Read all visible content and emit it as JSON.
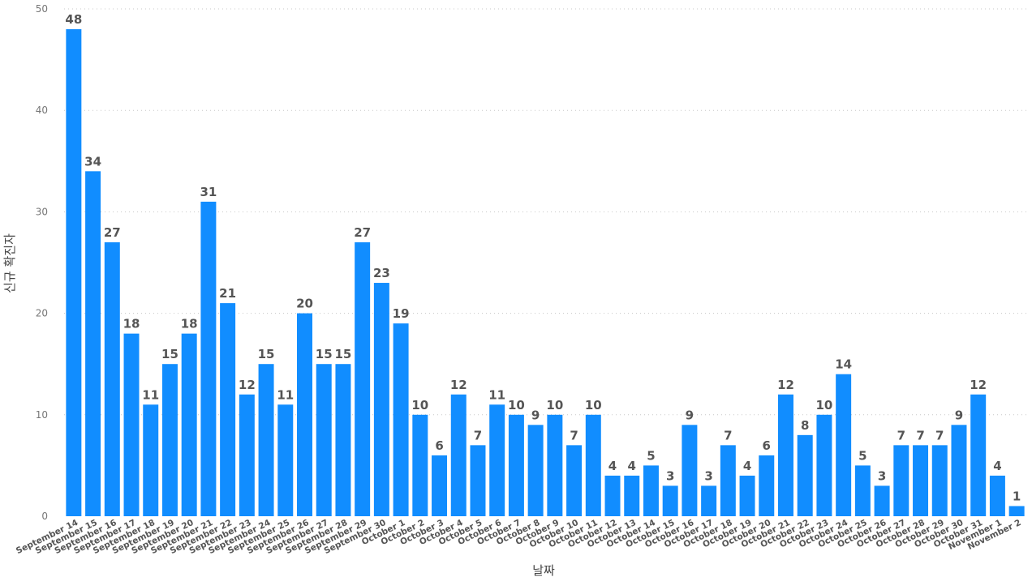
{
  "chart_data": {
    "type": "bar",
    "xlabel": "날짜",
    "ylabel": "신규 확진자",
    "ylim": [
      0,
      50
    ],
    "yticks": [
      "0",
      "10",
      "20",
      "30",
      "40",
      "50"
    ],
    "grid": true,
    "bar_color": "#118DFF",
    "categories": [
      "September 14",
      "September 15",
      "September 16",
      "September 17",
      "September 18",
      "September 19",
      "September 20",
      "September 21",
      "September 22",
      "September 23",
      "September 24",
      "September 25",
      "September 26",
      "September 27",
      "September 28",
      "September 29",
      "September 30",
      "October 1",
      "October 2",
      "October 3",
      "October 4",
      "October 5",
      "October 6",
      "October 7",
      "October 8",
      "October 9",
      "October 10",
      "October 11",
      "October 12",
      "October 13",
      "October 14",
      "October 15",
      "October 16",
      "October 17",
      "October 18",
      "October 19",
      "October 20",
      "October 21",
      "October 22",
      "October 23",
      "October 24",
      "October 25",
      "October 26",
      "October 27",
      "October 28",
      "October 29",
      "October 30",
      "October 31",
      "November 1",
      "November 2"
    ],
    "values": [
      48,
      34,
      27,
      18,
      11,
      15,
      18,
      31,
      21,
      12,
      15,
      11,
      20,
      15,
      15,
      27,
      23,
      19,
      10,
      6,
      12,
      7,
      11,
      10,
      9,
      10,
      7,
      10,
      4,
      4,
      5,
      3,
      9,
      3,
      7,
      4,
      6,
      12,
      8,
      10,
      14,
      5,
      3,
      7,
      7,
      7,
      9,
      12,
      4,
      1
    ]
  }
}
